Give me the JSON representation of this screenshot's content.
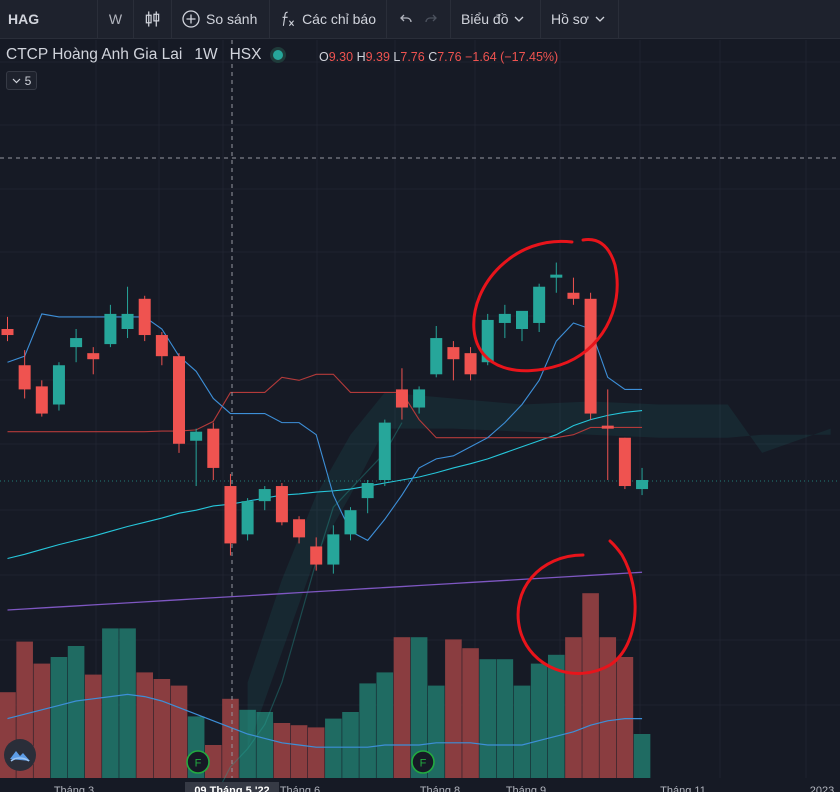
{
  "toolbar": {
    "symbol": "HAG",
    "interval": "W",
    "compare_label": "So sánh",
    "indicators_label": "Các chỉ báo",
    "chart_label": "Biểu đồ",
    "profile_label": "Hồ sơ"
  },
  "legend": {
    "name": "CTCP Hoàng Anh Gia Lai",
    "interval": "1W",
    "exchange": "HSX",
    "o_key": "O",
    "o_val": "9.30",
    "h_key": "H",
    "h_val": "9.39",
    "l_key": "L",
    "l_val": "7.76",
    "c_key": "C",
    "c_val": "7.76",
    "change": "−1.64 (−17.45%)",
    "collapse_count": "5"
  },
  "colors": {
    "up": "#26a69a",
    "down": "#ef5350",
    "background": "#161a25",
    "annotation": "#e8141b"
  },
  "chart_data": {
    "type": "candlestick",
    "x_labels": [
      "Tháng 3",
      "09 Tháng 5 '22",
      "Tháng 6",
      "Tháng 8",
      "Tháng 9",
      "Tháng 11",
      "2023"
    ],
    "candles": [
      {
        "o": 10.35,
        "h": 10.55,
        "l": 10.15,
        "c": 10.25
      },
      {
        "o": 9.75,
        "h": 10.0,
        "l": 9.2,
        "c": 9.35
      },
      {
        "o": 9.4,
        "h": 9.5,
        "l": 8.9,
        "c": 8.95
      },
      {
        "o": 9.1,
        "h": 9.8,
        "l": 9.0,
        "c": 9.75
      },
      {
        "o": 10.05,
        "h": 10.35,
        "l": 9.8,
        "c": 10.2
      },
      {
        "o": 9.95,
        "h": 10.05,
        "l": 9.6,
        "c": 9.85
      },
      {
        "o": 10.1,
        "h": 10.75,
        "l": 10.05,
        "c": 10.6
      },
      {
        "o": 10.35,
        "h": 11.05,
        "l": 10.2,
        "c": 10.6
      },
      {
        "o": 10.85,
        "h": 10.9,
        "l": 10.15,
        "c": 10.25
      },
      {
        "o": 10.25,
        "h": 10.3,
        "l": 9.75,
        "c": 9.9
      },
      {
        "o": 9.9,
        "h": 9.95,
        "l": 8.3,
        "c": 8.45
      },
      {
        "o": 8.5,
        "h": 8.7,
        "l": 7.75,
        "c": 8.65
      },
      {
        "o": 8.7,
        "h": 8.8,
        "l": 7.85,
        "c": 8.05
      },
      {
        "o": 7.75,
        "h": 7.95,
        "l": 6.6,
        "c": 6.8
      },
      {
        "o": 6.95,
        "h": 7.55,
        "l": 6.85,
        "c": 7.5
      },
      {
        "o": 7.5,
        "h": 7.75,
        "l": 7.35,
        "c": 7.7
      },
      {
        "o": 7.75,
        "h": 7.8,
        "l": 7.1,
        "c": 7.15
      },
      {
        "o": 7.2,
        "h": 7.25,
        "l": 6.8,
        "c": 6.9
      },
      {
        "o": 6.75,
        "h": 6.9,
        "l": 6.35,
        "c": 6.45
      },
      {
        "o": 6.45,
        "h": 7.1,
        "l": 6.3,
        "c": 6.95
      },
      {
        "o": 6.95,
        "h": 7.4,
        "l": 6.85,
        "c": 7.35
      },
      {
        "o": 7.55,
        "h": 7.85,
        "l": 7.3,
        "c": 7.8
      },
      {
        "o": 7.85,
        "h": 8.85,
        "l": 7.75,
        "c": 8.8
      },
      {
        "o": 9.35,
        "h": 9.7,
        "l": 8.85,
        "c": 9.05
      },
      {
        "o": 9.05,
        "h": 9.4,
        "l": 8.95,
        "c": 9.35
      },
      {
        "o": 9.6,
        "h": 10.4,
        "l": 9.55,
        "c": 10.2
      },
      {
        "o": 10.05,
        "h": 10.15,
        "l": 9.5,
        "c": 9.85
      },
      {
        "o": 9.95,
        "h": 10.05,
        "l": 9.5,
        "c": 9.6
      },
      {
        "o": 9.8,
        "h": 10.6,
        "l": 9.75,
        "c": 10.5
      },
      {
        "o": 10.45,
        "h": 10.75,
        "l": 10.2,
        "c": 10.6
      },
      {
        "o": 10.35,
        "h": 10.6,
        "l": 10.15,
        "c": 10.65
      },
      {
        "o": 10.45,
        "h": 11.1,
        "l": 10.3,
        "c": 11.05
      },
      {
        "o": 11.2,
        "h": 11.45,
        "l": 10.95,
        "c": 11.25
      },
      {
        "o": 10.95,
        "h": 11.2,
        "l": 10.75,
        "c": 10.85
      },
      {
        "o": 10.85,
        "h": 10.95,
        "l": 8.85,
        "c": 8.95
      },
      {
        "o": 8.75,
        "h": 9.35,
        "l": 7.85,
        "c": 8.7
      },
      {
        "o": 8.55,
        "h": 8.55,
        "l": 7.7,
        "c": 7.75
      },
      {
        "o": 7.7,
        "h": 8.05,
        "l": 7.6,
        "c": 7.85
      }
    ],
    "volume": [
      39,
      62,
      52,
      55,
      60,
      47,
      68,
      68,
      48,
      45,
      42,
      28,
      15,
      36,
      31,
      30,
      25,
      24,
      23,
      27,
      30,
      43,
      48,
      64,
      64,
      42,
      63,
      59,
      54,
      54,
      42,
      52,
      56,
      64,
      84,
      64,
      55,
      20
    ],
    "tenkan": [
      9.8,
      9.9,
      10.6,
      10.55,
      10.55,
      10.55,
      10.55,
      10.55,
      10.55,
      10.35,
      9.9,
      9.65,
      9.2,
      8.95,
      8.95,
      8.95,
      8.8,
      8.8,
      8.6,
      7.6,
      7.0,
      6.85,
      7.2,
      7.6,
      8.05,
      8.2,
      8.25,
      8.4,
      8.55,
      8.8,
      9.1,
      9.5,
      10.15,
      10.45,
      10.35,
      9.55,
      9.35,
      9.35
    ],
    "sma_cyan": [
      6.55,
      6.62,
      6.7,
      6.78,
      6.85,
      6.92,
      7.0,
      7.08,
      7.15,
      7.22,
      7.3,
      7.35,
      7.42,
      7.45,
      7.5,
      7.55,
      7.6,
      7.62,
      7.65,
      7.67,
      7.7,
      7.75,
      7.8,
      7.85,
      7.9,
      7.97,
      8.05,
      8.12,
      8.2,
      8.3,
      8.4,
      8.5,
      8.6,
      8.75,
      8.85,
      8.92,
      8.97,
      9.0
    ],
    "kijun_red": [
      8.65,
      8.65,
      8.65,
      8.65,
      8.65,
      8.65,
      8.65,
      8.65,
      8.65,
      8.66,
      8.66,
      8.68,
      8.82,
      9.3,
      9.3,
      9.3,
      9.55,
      9.5,
      9.6,
      9.6,
      9.3,
      9.3,
      9.3,
      9.3,
      8.85,
      8.55,
      8.55,
      8.55,
      8.55,
      8.55,
      8.55,
      8.55,
      8.55,
      8.6,
      8.72,
      8.72,
      8.72,
      8.72
    ],
    "chikou_green": [
      3.1,
      3.4,
      3.8,
      4.5,
      5.5,
      6.5,
      7.4,
      7.7,
      8.0,
      8.3,
      8.8
    ],
    "cloud_band": [
      {
        "x": 14,
        "top": 4.5,
        "bottom": 3.4
      },
      {
        "x": 16,
        "top": 6.2,
        "bottom": 5.0
      },
      {
        "x": 18,
        "top": 7.6,
        "bottom": 6.6
      },
      {
        "x": 20,
        "top": 8.6,
        "bottom": 7.6
      },
      {
        "x": 22,
        "top": 9.3,
        "bottom": 8.7
      },
      {
        "x": 26,
        "top": 9.2,
        "bottom": 8.7
      },
      {
        "x": 30,
        "top": 9.1,
        "bottom": 8.65
      },
      {
        "x": 34,
        "top": 9.15,
        "bottom": 8.6
      },
      {
        "x": 38,
        "top": 9.1,
        "bottom": 8.55
      },
      {
        "x": 42,
        "top": 9.1,
        "bottom": 8.55
      },
      {
        "x": 44,
        "top": 8.3,
        "bottom": 8.6
      },
      {
        "x": 46,
        "top": 8.5,
        "bottom": 8.6
      },
      {
        "x": 48,
        "top": 8.7,
        "bottom": 8.6
      }
    ],
    "volume_ma": [
      27,
      29,
      31,
      33,
      35,
      36,
      37,
      38,
      37,
      35,
      32,
      29,
      26,
      23,
      20,
      18,
      16,
      15,
      14,
      14,
      14,
      14,
      15,
      15,
      15,
      16,
      16,
      16,
      15,
      15,
      15,
      17,
      19,
      21,
      24,
      26,
      27,
      27
    ]
  }
}
